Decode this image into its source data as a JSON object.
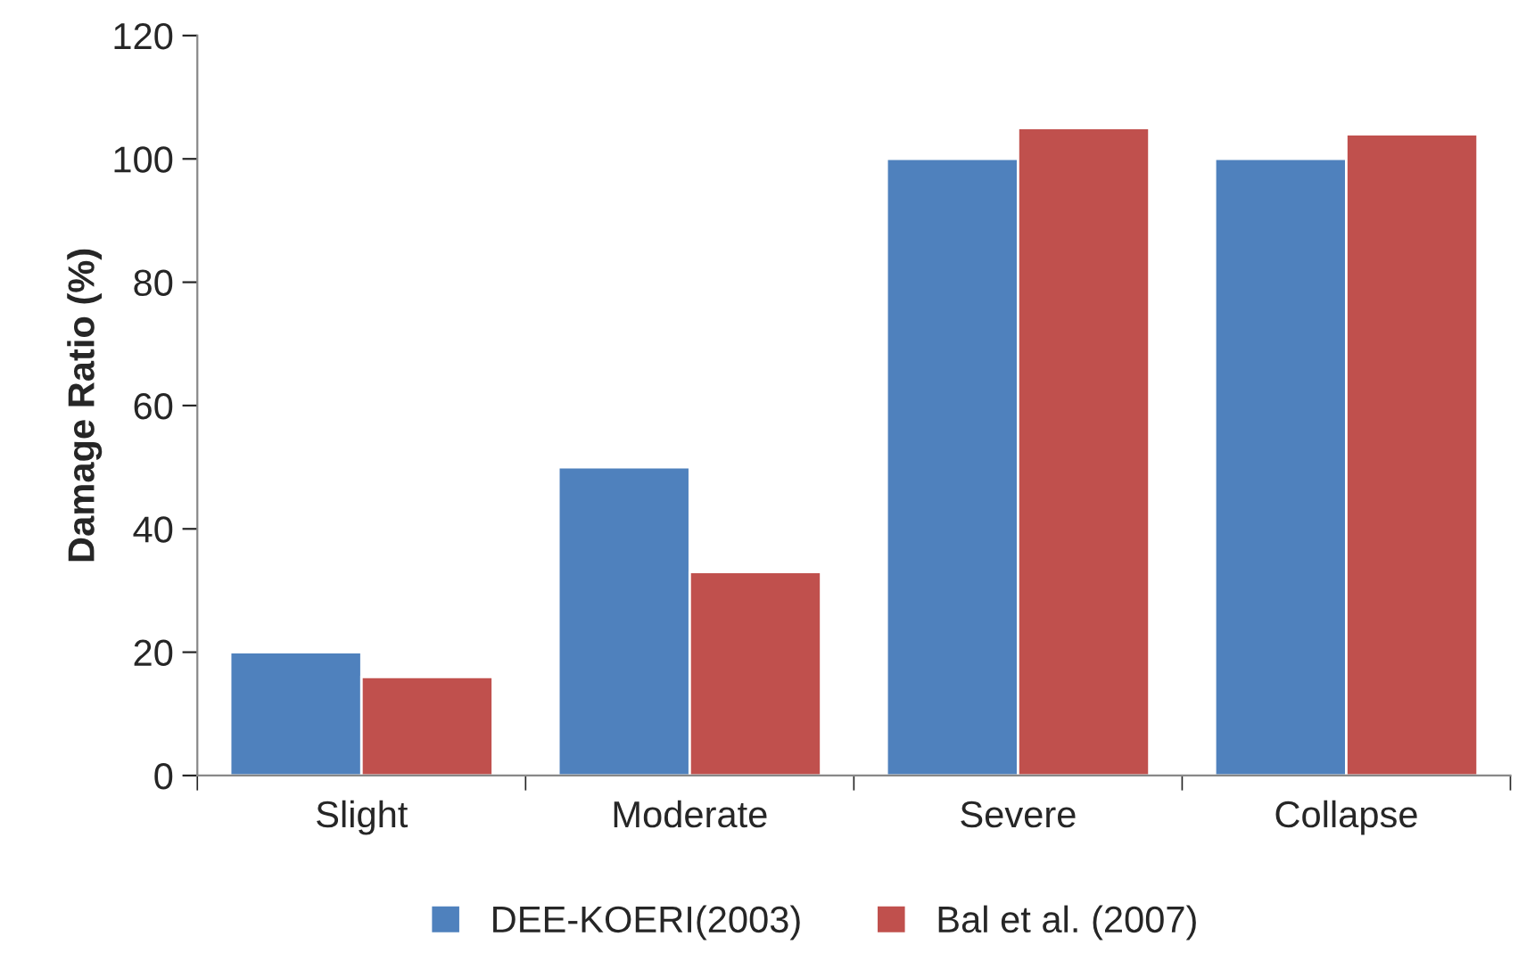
{
  "chart_data": {
    "type": "bar",
    "ylabel": "Damage Ratio (%)",
    "categories": [
      "Slight",
      "Moderate",
      "Severe",
      "Collapse"
    ],
    "series": [
      {
        "name": "DEE-KOERI(2003)",
        "color": "#4f81bd",
        "values": [
          20,
          50,
          100,
          100
        ]
      },
      {
        "name": "Bal et al. (2007)",
        "color": "#c0504d",
        "values": [
          16,
          33,
          105,
          104
        ]
      }
    ],
    "ylim": [
      0,
      120
    ],
    "yticks": [
      0,
      20,
      40,
      60,
      80,
      100,
      120
    ],
    "grid": false,
    "legend": "bottom"
  }
}
